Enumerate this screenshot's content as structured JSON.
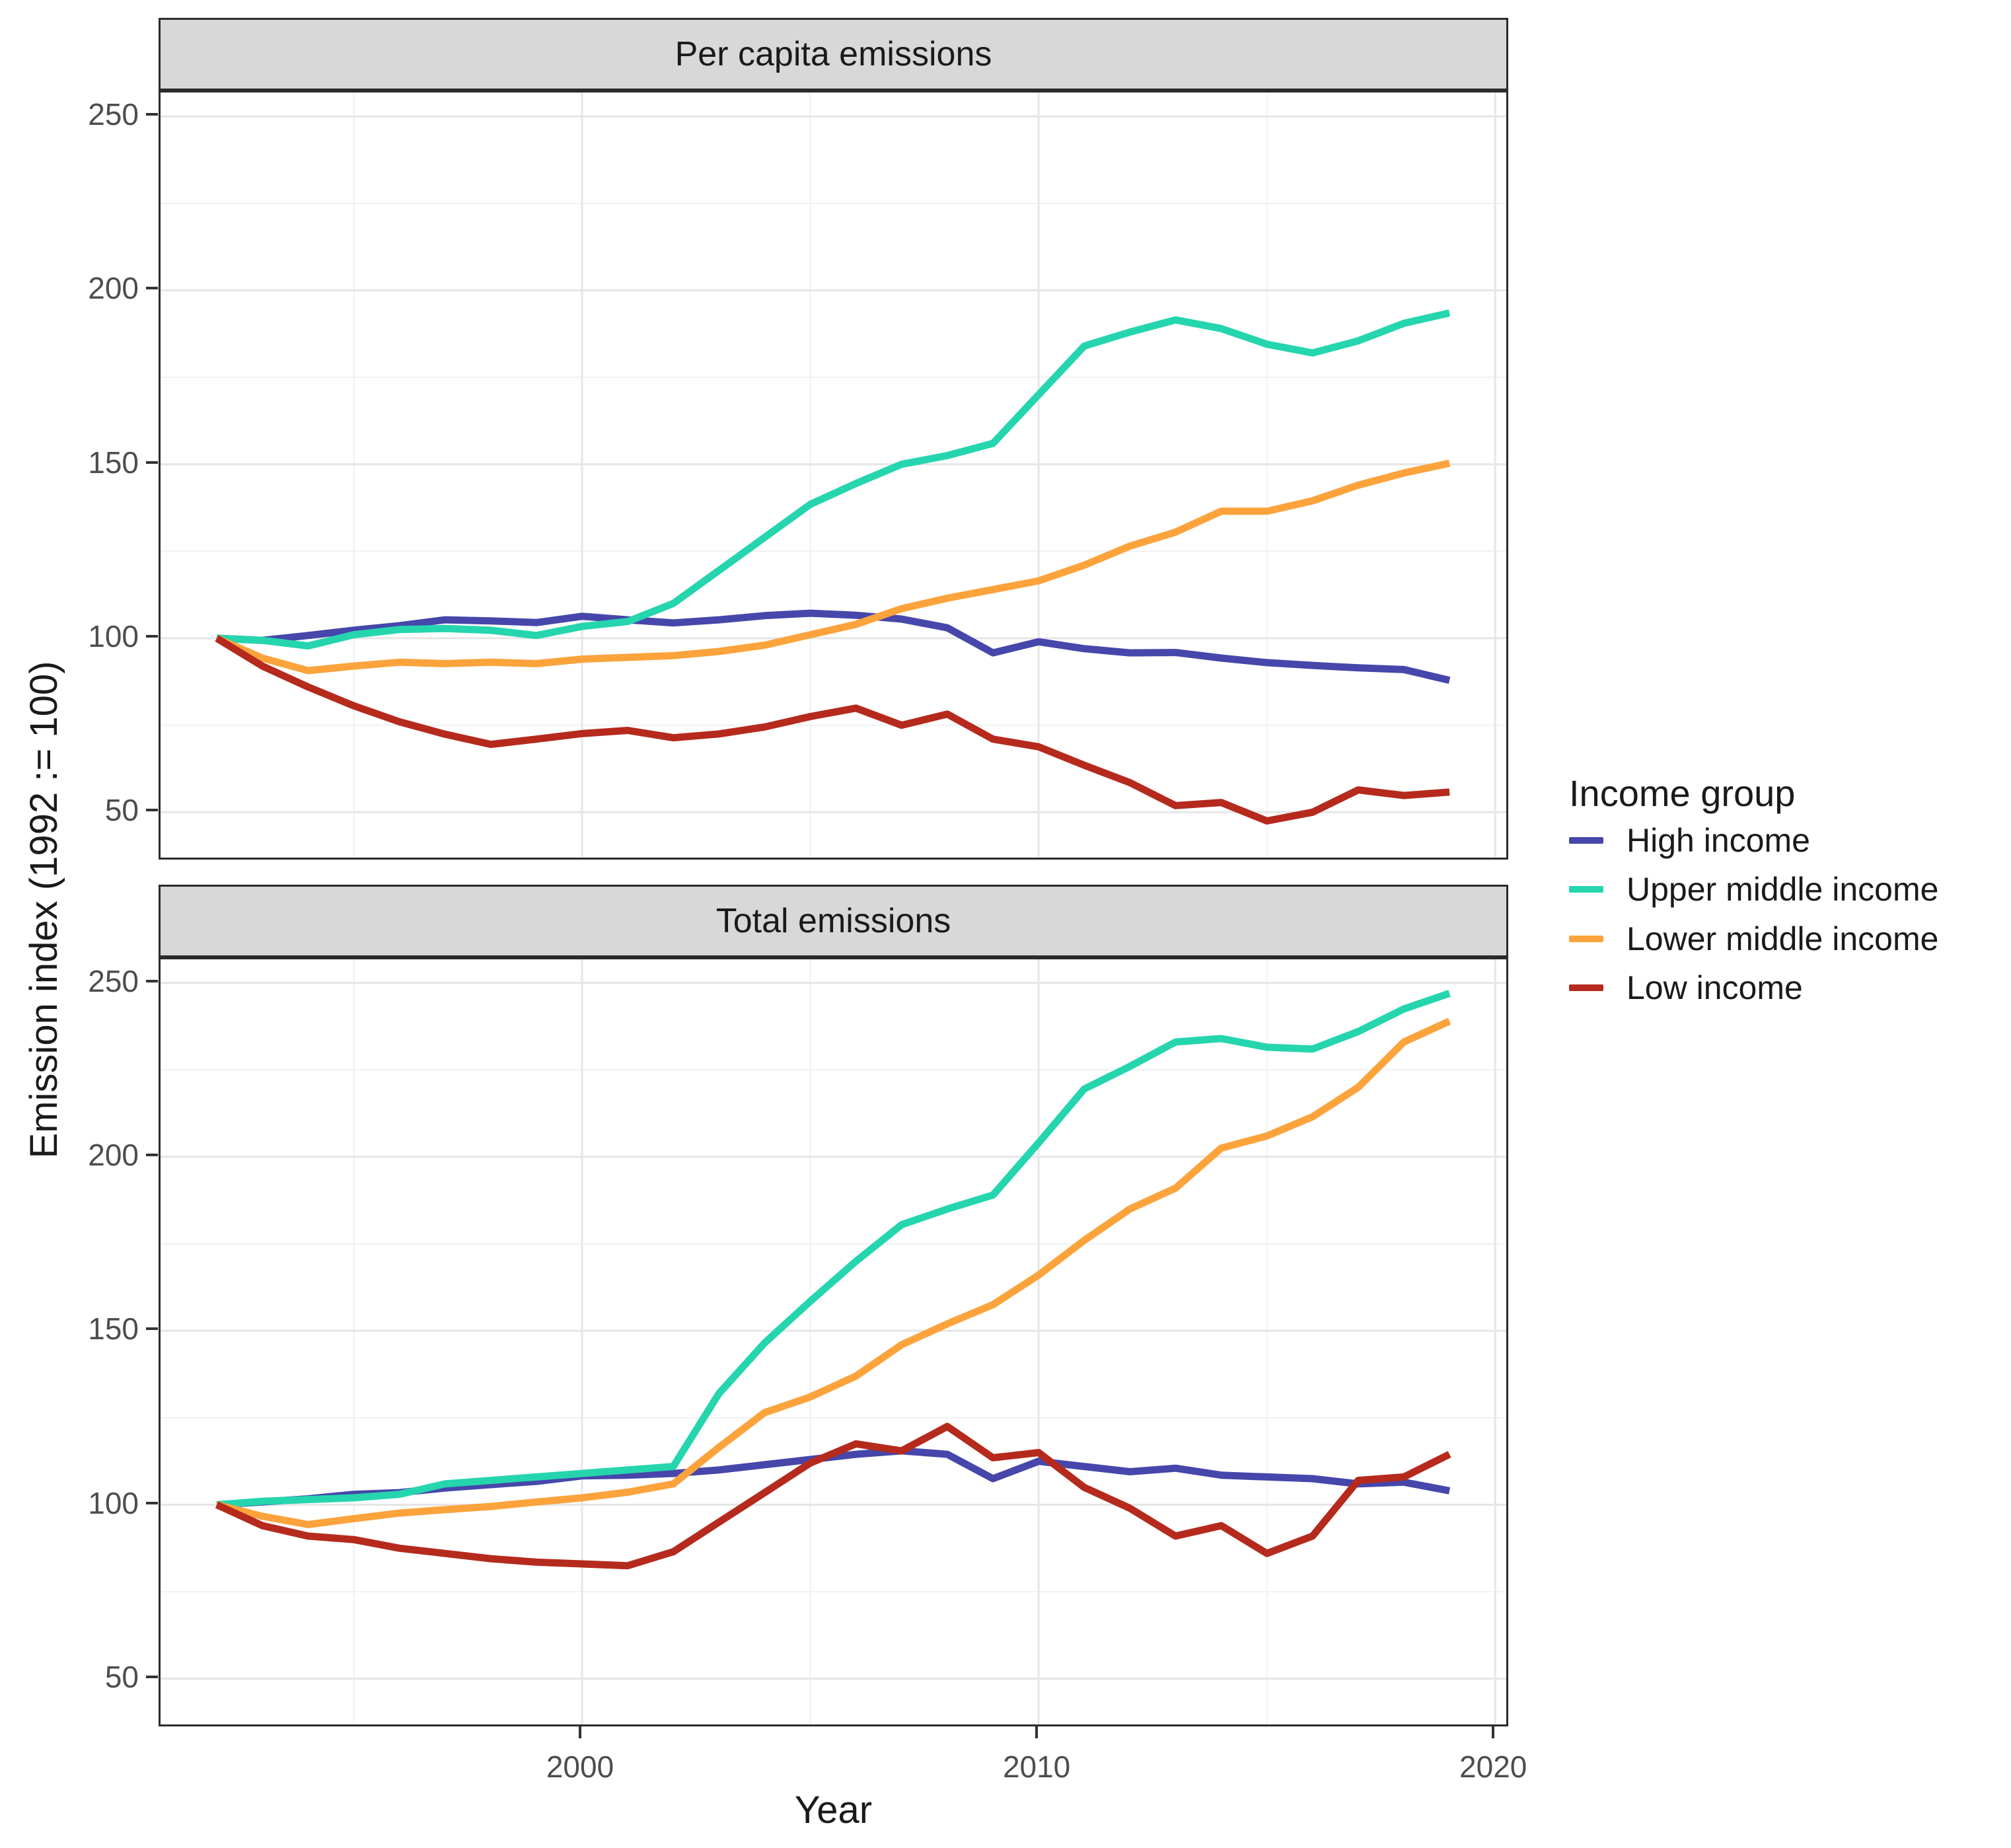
{
  "figure": {
    "type": "faceted-line-chart",
    "background": "#ffffff"
  },
  "axes": {
    "x_label": "Year",
    "y_label": "Emission index (1992 := 100)",
    "x_ticks": [
      {
        "value": 2000,
        "label": "2000"
      },
      {
        "value": 2010,
        "label": "2010"
      },
      {
        "value": 2020,
        "label": "2020"
      }
    ],
    "x_minor": [
      1995,
      2005,
      2015
    ],
    "y_ticks": [
      {
        "value": 50,
        "label": "50"
      },
      {
        "value": 100,
        "label": "100"
      },
      {
        "value": 150,
        "label": "150"
      },
      {
        "value": 200,
        "label": "200"
      },
      {
        "value": 250,
        "label": "250"
      }
    ],
    "y_minor": [
      75,
      125,
      175,
      225
    ],
    "y_range": [
      35.7,
      256.9
    ],
    "x_range": [
      1990.6,
      2020.4
    ],
    "grid": "on",
    "major_grid_color": "#e6e6e6",
    "minor_grid_color": "#f1f1f1"
  },
  "legend": {
    "title": "Income group",
    "position": "right",
    "items": [
      {
        "label": "High income",
        "color": "#4646ab"
      },
      {
        "label": "Upper middle income",
        "color": "#25d5ae"
      },
      {
        "label": "Lower middle income",
        "color": "#fca33c"
      },
      {
        "label": "Low income",
        "color": "#b52a1d"
      }
    ]
  },
  "chart_data": [
    {
      "type": "line",
      "title": "Per capita emissions",
      "xlabel": "Year",
      "ylabel": "Emission index (1992 := 100)",
      "x": [
        1992,
        1993,
        1994,
        1995,
        1996,
        1997,
        1998,
        1999,
        2000,
        2001,
        2002,
        2003,
        2004,
        2005,
        2006,
        2007,
        2008,
        2009,
        2010,
        2011,
        2012,
        2013,
        2014,
        2015,
        2016,
        2017,
        2018,
        2019
      ],
      "series": [
        {
          "name": "High income",
          "color": "#4646ab",
          "values": [
            100,
            99.4,
            100.8,
            102.3,
            103.6,
            105.3,
            105,
            104.5,
            106.3,
            105.3,
            104.4,
            105.3,
            106.5,
            107.2,
            106.6,
            105.5,
            103,
            95.8,
            99,
            97,
            95.8,
            95.9,
            94.3,
            93,
            92.2,
            91.5,
            91,
            87.9
          ]
        },
        {
          "name": "Upper middle income",
          "color": "#25d5ae",
          "values": [
            100,
            99.4,
            97.8,
            101,
            102.5,
            102.8,
            102.3,
            100.8,
            103.4,
            104.8,
            110,
            119.5,
            129,
            138.5,
            144.5,
            150,
            152.5,
            156,
            170,
            184,
            188,
            191.5,
            189,
            184.5,
            182,
            185.5,
            190.5,
            193.5
          ]
        },
        {
          "name": "Lower middle income",
          "color": "#fca33c",
          "values": [
            100,
            94.3,
            90.7,
            92,
            93.1,
            92.7,
            93.1,
            92.7,
            94,
            94.5,
            95,
            96.2,
            98,
            101,
            104,
            108.5,
            111.5,
            114,
            116.5,
            121,
            126.5,
            130.5,
            136.5,
            136.5,
            139.5,
            144,
            147.5,
            150.3
          ]
        },
        {
          "name": "Low income",
          "color": "#b52a1d",
          "values": [
            100,
            92,
            86,
            80.6,
            76,
            72.4,
            69.5,
            71,
            72.6,
            73.5,
            71.4,
            72.5,
            74.5,
            77.5,
            79.9,
            75,
            78.2,
            71,
            68.8,
            63.5,
            58.5,
            51.9,
            52.8,
            47.5,
            50,
            56.4,
            54.8,
            55.8
          ]
        }
      ]
    },
    {
      "type": "line",
      "title": "Total emissions",
      "xlabel": "Year",
      "ylabel": "Emission index (1992 := 100)",
      "x": [
        1992,
        1993,
        1994,
        1995,
        1996,
        1997,
        1998,
        1999,
        2000,
        2001,
        2002,
        2003,
        2004,
        2005,
        2006,
        2007,
        2008,
        2009,
        2010,
        2011,
        2012,
        2013,
        2014,
        2015,
        2016,
        2017,
        2018,
        2019
      ],
      "series": [
        {
          "name": "High income",
          "color": "#4646ab",
          "values": [
            100,
            100.8,
            101.7,
            103,
            103.5,
            104.8,
            105.8,
            106.7,
            108.3,
            108.5,
            109,
            110,
            111.5,
            113,
            114.5,
            115.5,
            114.5,
            107.5,
            112.5,
            111,
            109.5,
            110.5,
            108.5,
            108,
            107.5,
            106,
            106.5,
            104
          ]
        },
        {
          "name": "Upper middle income",
          "color": "#25d5ae",
          "values": [
            100,
            101,
            101.5,
            102,
            103,
            106,
            107,
            108,
            109,
            110,
            111,
            132,
            146.5,
            158.5,
            170,
            180.5,
            185,
            189,
            204,
            219.5,
            226,
            233,
            234,
            231.5,
            231,
            236,
            242.5,
            247
          ]
        },
        {
          "name": "Lower middle income",
          "color": "#fca33c",
          "values": [
            100,
            96.7,
            94.3,
            96,
            97.6,
            98.6,
            99.5,
            100.8,
            102,
            103.6,
            106,
            116.5,
            126.5,
            131,
            137,
            146,
            152,
            157.5,
            166,
            176,
            185,
            191,
            202.5,
            206,
            211.5,
            220,
            233,
            239
          ]
        },
        {
          "name": "Low income",
          "color": "#b52a1d",
          "values": [
            100,
            94,
            91,
            90,
            87.5,
            86,
            84.5,
            83.5,
            83,
            82.5,
            86.5,
            95,
            103.5,
            112,
            117.5,
            115.5,
            122.5,
            113.5,
            115,
            105,
            99,
            91,
            94,
            86,
            91,
            107,
            108,
            114.5
          ]
        }
      ]
    }
  ]
}
